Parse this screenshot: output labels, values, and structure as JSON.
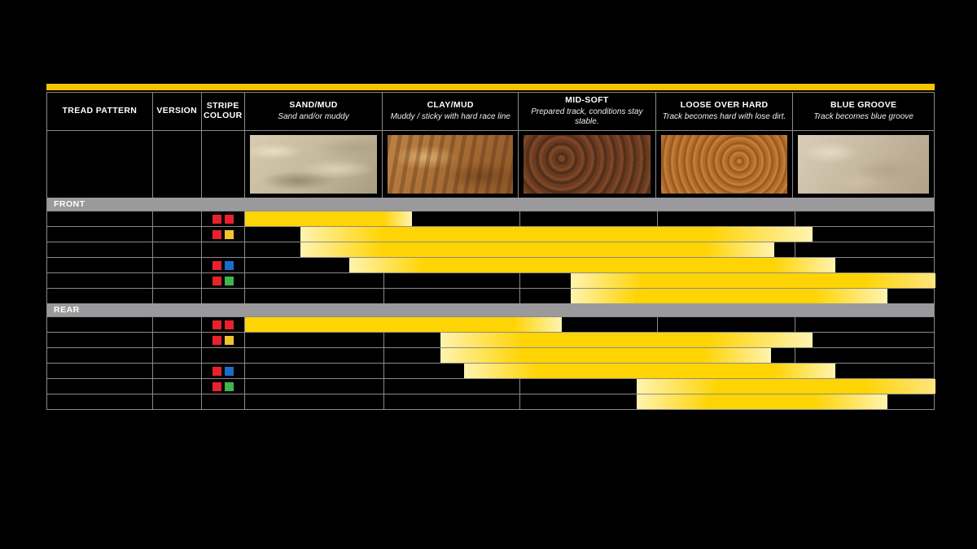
{
  "colors": {
    "accent_topbar": "#F5C400",
    "bar_yellow": "#FFD404",
    "bar_pale": "#FFF3B0",
    "bar_edge_fade": "#FFE57E",
    "section_gray": "#9A999B",
    "grid_gray": "#8A8A8C",
    "stripe": {
      "red": "#E8212D",
      "yellow": "#EFC431",
      "blue": "#1A6EC8",
      "green": "#3FB54C"
    }
  },
  "header": {
    "columns": [
      {
        "label": "TREAD PATTERN",
        "subtitle": ""
      },
      {
        "label": "VERSION",
        "subtitle": ""
      },
      {
        "label": "STRIPE COLOUR",
        "subtitle": ""
      },
      {
        "label": "SAND/MUD",
        "subtitle": "Sand and/or muddy",
        "terrain": "sand"
      },
      {
        "label": "CLAY/MUD",
        "subtitle": "Muddy / sticky with hard race line",
        "terrain": "clay"
      },
      {
        "label": "MID-SOFT",
        "subtitle": "Prepared track, conditions stay stable.",
        "terrain": "mid"
      },
      {
        "label": "LOOSE OVER HARD",
        "subtitle": "Track becomes hard with lose dirt.",
        "terrain": "loose"
      },
      {
        "label": "BLUE GROOVE",
        "subtitle": "Track becomes blue groove",
        "terrain": "blue"
      }
    ]
  },
  "chart_data": {
    "type": "bar",
    "subtype": "horizontal-range-application-chart",
    "terrain_axis": [
      "SAND/MUD",
      "CLAY/MUD",
      "MID-SOFT",
      "LOOSE OVER HARD",
      "BLUE GROOVE"
    ],
    "axis_note": "Range units: 0 = left edge of SAND/MUD column, 5 = right edge of BLUE GROOVE column. solid_start/solid_end mark the fully saturated part of each yellow band; start/end include the pale fade.",
    "sections": [
      {
        "label": "FRONT",
        "rows": [
          {
            "stripe_colours": [
              "red",
              "red"
            ],
            "range": {
              "start": 0,
              "solid_start": 0,
              "solid_end": 1.0,
              "end": 1.21
            },
            "end_style": "fade"
          },
          {
            "stripe_colours": [
              "red",
              "yellow"
            ],
            "range": {
              "start": 0.4,
              "solid_start": 1.0,
              "solid_end": 3.38,
              "end": 4.13
            },
            "end_style": "fade"
          },
          {
            "stripe_colours": [],
            "range": {
              "start": 0.4,
              "solid_start": 1.0,
              "solid_end": 3.35,
              "end": 3.85
            },
            "end_style": "fade"
          },
          {
            "stripe_colours": [
              "red",
              "blue"
            ],
            "range": {
              "start": 0.75,
              "solid_start": 1.3,
              "solid_end": 3.85,
              "end": 4.29
            },
            "end_style": "fade"
          },
          {
            "stripe_colours": [
              "red",
              "green"
            ],
            "range": {
              "start": 2.37,
              "solid_start": 2.9,
              "solid_end": 4.49,
              "end": 5.0
            },
            "end_style": "edge"
          },
          {
            "stripe_colours": [],
            "range": {
              "start": 2.37,
              "solid_start": 2.85,
              "solid_end": 4.14,
              "end": 4.66
            },
            "end_style": "fade"
          }
        ]
      },
      {
        "label": "REAR",
        "rows": [
          {
            "stripe_colours": [
              "red",
              "red"
            ],
            "range": {
              "start": 0,
              "solid_start": 0,
              "solid_end": 1.96,
              "end": 2.31
            },
            "end_style": "fade"
          },
          {
            "stripe_colours": [
              "red",
              "yellow"
            ],
            "range": {
              "start": 1.42,
              "solid_start": 2.02,
              "solid_end": 3.38,
              "end": 4.13
            },
            "end_style": "fade"
          },
          {
            "stripe_colours": [],
            "range": {
              "start": 1.42,
              "solid_start": 2.02,
              "solid_end": 3.35,
              "end": 3.83
            },
            "end_style": "fade"
          },
          {
            "stripe_colours": [
              "red",
              "blue"
            ],
            "range": {
              "start": 1.59,
              "solid_start": 2.14,
              "solid_end": 3.85,
              "end": 4.29
            },
            "end_style": "fade"
          },
          {
            "stripe_colours": [
              "red",
              "green"
            ],
            "range": {
              "start": 2.85,
              "solid_start": 3.44,
              "solid_end": 4.49,
              "end": 5.0
            },
            "end_style": "edge"
          },
          {
            "stripe_colours": [],
            "range": {
              "start": 2.85,
              "solid_start": 3.38,
              "solid_end": 4.14,
              "end": 4.66
            },
            "end_style": "fade"
          }
        ]
      }
    ]
  }
}
